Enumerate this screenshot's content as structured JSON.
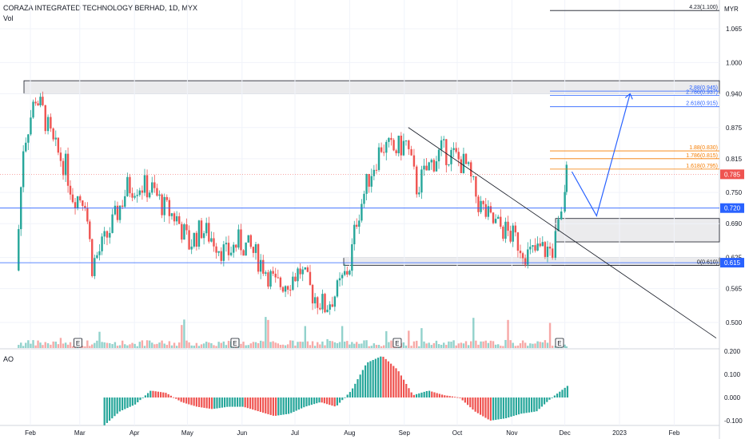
{
  "header": {
    "title": "CORAZA INTEGRATED TECHNOLOGY BERHAD, 1D, MYX",
    "volume_label": "Vol",
    "ao_label": "AO"
  },
  "colors": {
    "up": "#26a69a",
    "down": "#ef5350",
    "fib_orange": "#f57c00",
    "fib_blue": "#2962ff",
    "price_line": "#2962ff",
    "last_price": "#ef5350"
  },
  "chart_data": {
    "type": "candlestick",
    "title": "CORAZA INTEGRATED TECHNOLOGY BERHAD, 1D, MYX",
    "currency": "MYR",
    "y_ticks": [
      "1.065",
      "1.000",
      "0.940",
      "0.875",
      "0.815",
      "0.750",
      "0.690",
      "0.625",
      "0.565",
      "0.500"
    ],
    "x_ticks": [
      "Feb",
      "Mar",
      "Apr",
      "May",
      "Jun",
      "Jul",
      "Aug",
      "Sep",
      "Oct",
      "Nov",
      "Dec",
      "2023",
      "Feb"
    ],
    "ohlc_close_path": [
      [
        "2022-01-24",
        0.6
      ],
      [
        "2022-01-28",
        0.84
      ],
      [
        "2022-02-04",
        0.935
      ],
      [
        "2022-02-08",
        0.905
      ],
      [
        "2022-02-14",
        0.84
      ],
      [
        "2022-02-21",
        0.8
      ],
      [
        "2022-02-25",
        0.745
      ],
      [
        "2022-03-04",
        0.74
      ],
      [
        "2022-03-08",
        0.61
      ],
      [
        "2022-03-15",
        0.655
      ],
      [
        "2022-03-21",
        0.7
      ],
      [
        "2022-03-28",
        0.76
      ],
      [
        "2022-04-04",
        0.765
      ],
      [
        "2022-04-11",
        0.755
      ],
      [
        "2022-04-18",
        0.72
      ],
      [
        "2022-04-25",
        0.7
      ],
      [
        "2022-05-02",
        0.65
      ],
      [
        "2022-05-09",
        0.68
      ],
      [
        "2022-05-16",
        0.66
      ],
      [
        "2022-05-23",
        0.63
      ],
      [
        "2022-05-30",
        0.655
      ],
      [
        "2022-06-06",
        0.64
      ],
      [
        "2022-06-13",
        0.61
      ],
      [
        "2022-06-20",
        0.57
      ],
      [
        "2022-06-27",
        0.58
      ],
      [
        "2022-07-04",
        0.6
      ],
      [
        "2022-07-11",
        0.555
      ],
      [
        "2022-07-18",
        0.53
      ],
      [
        "2022-07-25",
        0.56
      ],
      [
        "2022-08-01",
        0.61
      ],
      [
        "2022-08-05",
        0.7
      ],
      [
        "2022-08-12",
        0.78
      ],
      [
        "2022-08-19",
        0.84
      ],
      [
        "2022-08-26",
        0.83
      ],
      [
        "2022-09-02",
        0.845
      ],
      [
        "2022-09-08",
        0.76
      ],
      [
        "2022-09-15",
        0.8
      ],
      [
        "2022-09-22",
        0.83
      ],
      [
        "2022-09-29",
        0.82
      ],
      [
        "2022-10-06",
        0.8
      ],
      [
        "2022-10-13",
        0.73
      ],
      [
        "2022-10-20",
        0.695
      ],
      [
        "2022-10-27",
        0.68
      ],
      [
        "2022-11-03",
        0.66
      ],
      [
        "2022-11-10",
        0.63
      ],
      [
        "2022-11-17",
        0.64
      ],
      [
        "2022-11-24",
        0.64
      ],
      [
        "2022-11-29",
        0.7
      ],
      [
        "2022-12-01",
        0.76
      ],
      [
        "2022-12-02",
        0.785
      ]
    ],
    "price_levels": {
      "last_price": "0.785",
      "level_a": "0.720",
      "level_b": "0.615"
    },
    "fibonacci": [
      {
        "label": "4.23(1.100)",
        "value": 1.1
      },
      {
        "label": "2.88(0.945)",
        "value": 0.945
      },
      {
        "label": "2.786(0.937)",
        "value": 0.937
      },
      {
        "label": "2.618(0.915)",
        "value": 0.915
      },
      {
        "label": "1.88(0.830)",
        "value": 0.83
      },
      {
        "label": "1.786(0.815)",
        "value": 0.815
      },
      {
        "label": "1.618(0.795)",
        "value": 0.795
      },
      {
        "label": "0(0.610)",
        "value": 0.61
      }
    ],
    "zones": [
      {
        "name": "resistance-zone",
        "from": 0.94,
        "to": 0.965
      },
      {
        "name": "demand-zone",
        "from": 0.655,
        "to": 0.7
      },
      {
        "name": "support-zone",
        "from": 0.61,
        "to": 0.625
      }
    ],
    "earnings_markers": [
      "E",
      "E",
      "E",
      "E"
    ],
    "ao": {
      "y_ticks": [
        "0.200",
        "0.100",
        "0.000",
        "-0.100"
      ],
      "values": [
        -0.12,
        -0.06,
        -0.03,
        0.03,
        0.02,
        -0.02,
        -0.04,
        -0.05,
        -0.04,
        -0.04,
        -0.06,
        -0.08,
        -0.07,
        -0.04,
        -0.02,
        -0.04,
        0.03,
        0.15,
        0.18,
        0.12,
        0.01,
        0.03,
        0.01,
        0.0,
        -0.06,
        -0.1,
        -0.09,
        -0.07,
        -0.06,
        0.0,
        0.05
      ]
    }
  }
}
